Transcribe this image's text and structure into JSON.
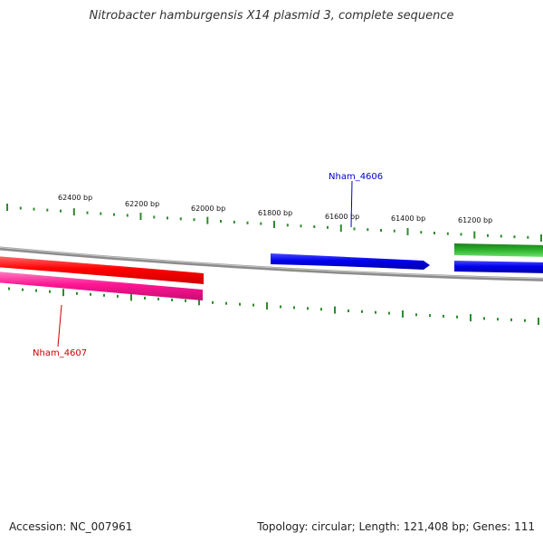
{
  "title": "Nitrobacter hamburgensis X14 plasmid 3, complete sequence",
  "footer": {
    "accession": "Accession: NC_007961",
    "topology": "Topology: circular; Length: 121,408 bp; Genes: 111"
  },
  "colors": {
    "backbone": "#8c8c8c",
    "tick": "#2e8b2e",
    "gene_forward": "#0000ee",
    "gene_reverse_red": "#ff0000",
    "gene_reverse_pink": "#ff1493",
    "gene_green": "#22a022",
    "label_blue": "#0000cc",
    "label_red": "#cc0000"
  },
  "scale_ticks": [
    {
      "label": "62400 bp"
    },
    {
      "label": "62200 bp"
    },
    {
      "label": "62000 bp"
    },
    {
      "label": "61800 bp"
    },
    {
      "label": "61600 bp"
    },
    {
      "label": "61400 bp"
    },
    {
      "label": "61200 bp"
    }
  ],
  "genes": [
    {
      "name": "Nham_4606",
      "strand": "forward",
      "color": "blue"
    },
    {
      "name": "Nham_4607",
      "strand": "reverse",
      "color": "red"
    }
  ],
  "unlabeled_features": [
    {
      "strand": "reverse",
      "color": "pink"
    },
    {
      "strand": "forward",
      "color": "green"
    },
    {
      "strand": "forward",
      "color": "blue"
    }
  ]
}
